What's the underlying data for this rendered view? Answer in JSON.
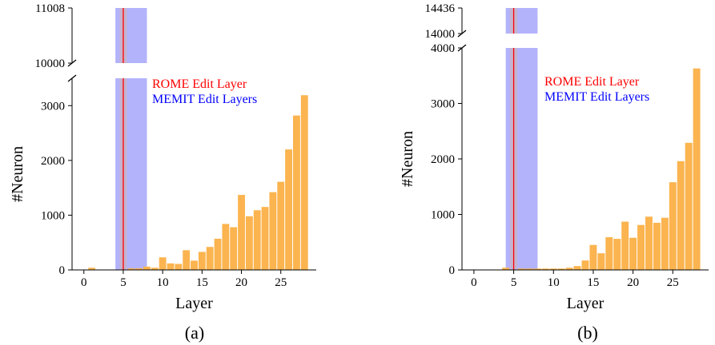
{
  "chart_data": [
    {
      "type": "bar",
      "caption": "(a)",
      "xlabel": "Layer",
      "ylabel": "#Neuron",
      "xlim": [
        -1.5,
        29.5
      ],
      "xticks": [
        0,
        5,
        10,
        15,
        20,
        25
      ],
      "ylim_lower": [
        0,
        3500
      ],
      "ylim_upper": [
        10000,
        11008
      ],
      "yticks_lower": [
        0,
        1000,
        2000,
        3000
      ],
      "yticks_upper": [
        10000,
        11008
      ],
      "bar_color": "#fbb44f",
      "legend": [
        {
          "label": "ROME Edit Layer",
          "color": "#ff0000"
        },
        {
          "label": "MEMIT Edit Layers",
          "color": "#0000ff"
        }
      ],
      "rome_layer": 5,
      "memit_span": [
        4,
        8
      ],
      "memit_color": "#b3b3fb",
      "x": [
        0,
        1,
        2,
        3,
        4,
        5,
        6,
        7,
        8,
        9,
        10,
        11,
        12,
        13,
        14,
        15,
        16,
        17,
        18,
        19,
        20,
        21,
        22,
        23,
        24,
        25,
        26,
        27,
        28
      ],
      "values": [
        5,
        40,
        5,
        5,
        5,
        11008,
        30,
        30,
        60,
        40,
        230,
        120,
        110,
        360,
        170,
        330,
        420,
        570,
        840,
        780,
        1370,
        980,
        1090,
        1150,
        1420,
        1610,
        2200,
        2820,
        3190
      ]
    },
    {
      "type": "bar",
      "caption": "(b)",
      "xlabel": "Layer",
      "ylabel": "#Neuron",
      "xlim": [
        -1.5,
        29.5
      ],
      "xticks": [
        0,
        5,
        10,
        15,
        20,
        25
      ],
      "ylim_lower": [
        0,
        4000
      ],
      "ylim_upper": [
        14000,
        14436
      ],
      "yticks_lower": [
        0,
        1000,
        2000,
        3000,
        4000
      ],
      "yticks_upper": [
        14000,
        14436
      ],
      "bar_color": "#fbb44f",
      "legend": [
        {
          "label": "ROME Edit Layer",
          "color": "#ff0000"
        },
        {
          "label": "MEMIT Edit Layers",
          "color": "#0000ff"
        }
      ],
      "rome_layer": 5,
      "memit_span": [
        4,
        8
      ],
      "memit_color": "#b3b3fb",
      "x": [
        0,
        1,
        2,
        3,
        4,
        5,
        6,
        7,
        8,
        9,
        10,
        11,
        12,
        13,
        14,
        15,
        16,
        17,
        18,
        19,
        20,
        21,
        22,
        23,
        24,
        25,
        26,
        27,
        28
      ],
      "values": [
        5,
        5,
        5,
        5,
        40,
        14436,
        25,
        25,
        25,
        25,
        25,
        25,
        40,
        70,
        170,
        450,
        300,
        590,
        560,
        870,
        580,
        810,
        960,
        850,
        940,
        1580,
        1960,
        2290,
        3630
      ]
    }
  ]
}
